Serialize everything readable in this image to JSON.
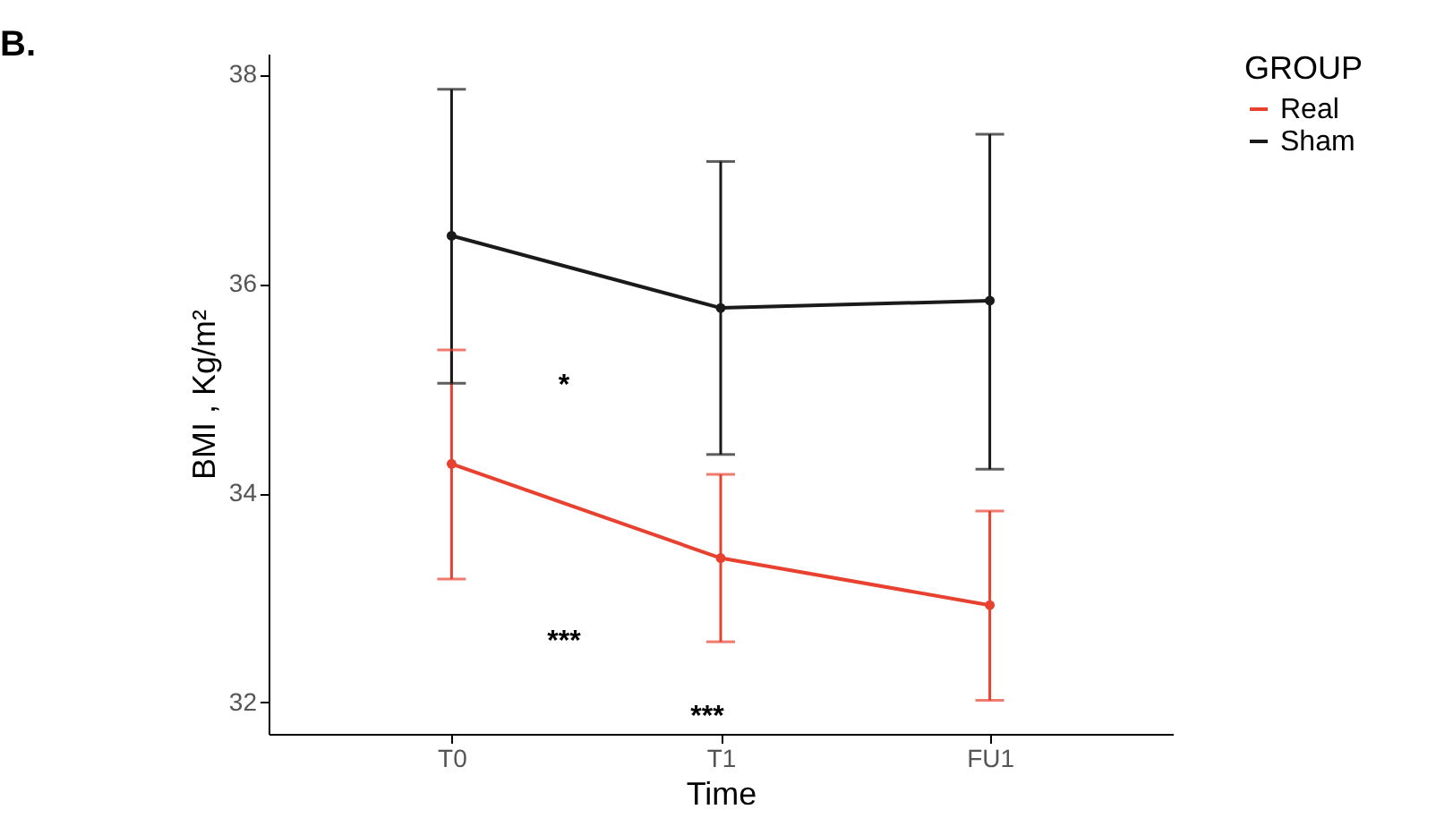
{
  "chart_data": {
    "type": "line",
    "title": "B.",
    "xlabel": "Time",
    "ylabel": "BMI , Kg/m²",
    "legend_title": "GROUP",
    "categories": [
      "T0",
      "T1",
      "FU1"
    ],
    "series": [
      {
        "name": "Real",
        "color": "#e8412f",
        "values": [
          34.28,
          33.38,
          32.93
        ],
        "errors": [
          [
            33.18,
            35.37
          ],
          [
            32.58,
            34.18
          ],
          [
            32.02,
            33.83
          ]
        ]
      },
      {
        "name": "Sham",
        "color": "#1a1a1a",
        "values": [
          36.46,
          35.77,
          35.84
        ],
        "errors": [
          [
            35.05,
            37.86
          ],
          [
            34.37,
            37.17
          ],
          [
            34.23,
            37.43
          ]
        ]
      }
    ],
    "ylim": [
      31.7,
      38.2
    ],
    "yticks": [
      32,
      34,
      36,
      38
    ],
    "grid": false,
    "legend": "right",
    "marker": "circle",
    "line_style": "solid",
    "annotations": [
      "*",
      "***",
      "***"
    ]
  }
}
